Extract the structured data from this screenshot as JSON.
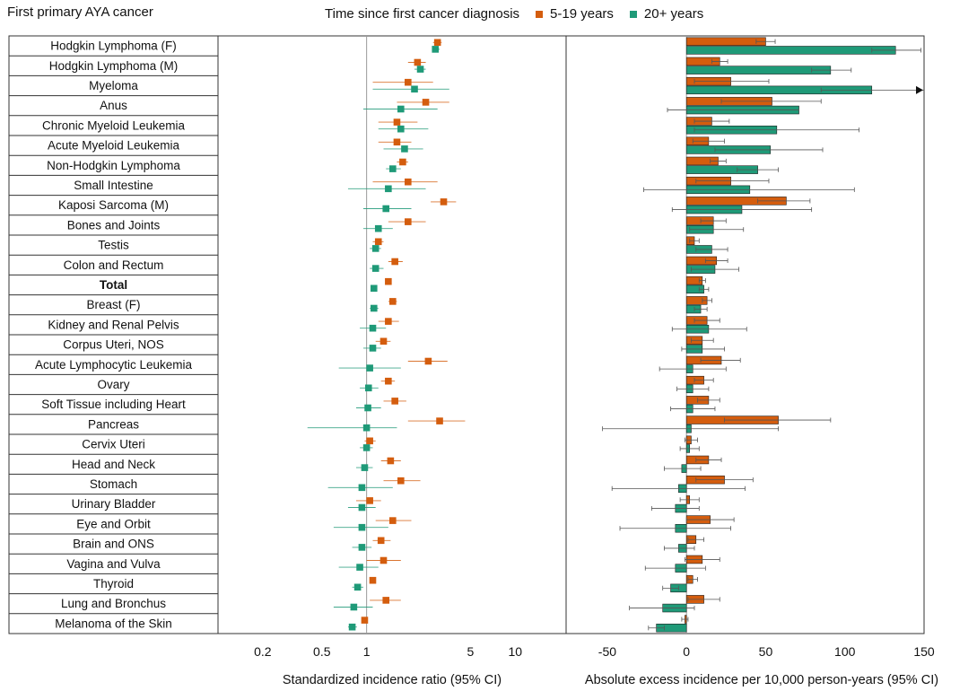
{
  "header": {
    "title": "First primary AYA cancer"
  },
  "legend": {
    "title": "Time since first cancer diagnosis"
  },
  "colors": {
    "early": "#d45d0e",
    "late": "#1f9a78",
    "grid": "#9a9a9a",
    "ci": "#555555"
  },
  "chart_data": [
    {
      "type": "scatter",
      "title": "",
      "xlabel": "Standardized incidence ratio (95% CI)",
      "xscale": "log",
      "xlim": [
        0.1,
        22
      ],
      "ticks": [
        0.2,
        0.5,
        1,
        5,
        10
      ],
      "tick_labels": [
        "0.2",
        "0.5",
        "1",
        "5",
        "10"
      ],
      "reference_line": 1,
      "series": [
        {
          "name": "5-19 years",
          "color": "#d45d0e"
        },
        {
          "name": "20+ years",
          "color": "#1f9a78"
        }
      ],
      "rows": [
        {
          "label": "Hodgkin Lymphoma (F)",
          "early": [
            3.0,
            2.8,
            3.2
          ],
          "late": [
            2.9,
            2.8,
            3.1
          ]
        },
        {
          "label": "Hodgkin Lymphoma (M)",
          "early": [
            2.2,
            1.9,
            2.5
          ],
          "late": [
            2.3,
            2.1,
            2.5
          ]
        },
        {
          "label": "Myeloma",
          "early": [
            1.9,
            1.1,
            2.8
          ],
          "late": [
            2.1,
            1.1,
            3.6
          ]
        },
        {
          "label": "Anus",
          "early": [
            2.5,
            1.6,
            3.6
          ],
          "late": [
            1.7,
            0.95,
            3.0
          ]
        },
        {
          "label": "Chronic Myeloid Leukemia",
          "early": [
            1.6,
            1.2,
            2.2
          ],
          "late": [
            1.7,
            1.2,
            2.6
          ]
        },
        {
          "label": "Acute Myeloid Leukemia",
          "early": [
            1.6,
            1.2,
            2.0
          ],
          "late": [
            1.8,
            1.3,
            2.4
          ]
        },
        {
          "label": "Non-Hodgkin Lymphoma",
          "early": [
            1.75,
            1.6,
            1.9
          ],
          "late": [
            1.5,
            1.35,
            1.7
          ]
        },
        {
          "label": "Small Intestine",
          "early": [
            1.9,
            1.1,
            3.0
          ],
          "late": [
            1.4,
            0.75,
            2.5
          ]
        },
        {
          "label": "Kaposi Sarcoma (M)",
          "early": [
            3.3,
            2.7,
            4.0
          ],
          "late": [
            1.35,
            0.95,
            2.0
          ]
        },
        {
          "label": "Bones and Joints",
          "early": [
            1.9,
            1.4,
            2.5
          ],
          "late": [
            1.2,
            0.95,
            1.5
          ]
        },
        {
          "label": "Testis",
          "early": [
            1.2,
            1.1,
            1.3
          ],
          "late": [
            1.15,
            1.05,
            1.25
          ]
        },
        {
          "label": "Colon and Rectum",
          "early": [
            1.55,
            1.4,
            1.75
          ],
          "late": [
            1.15,
            1.05,
            1.3
          ]
        },
        {
          "label": "Total",
          "bold": true,
          "early": [
            1.4,
            1.35,
            1.45
          ],
          "late": [
            1.12,
            1.08,
            1.16
          ]
        },
        {
          "label": "Breast (F)",
          "early": [
            1.5,
            1.4,
            1.6
          ],
          "late": [
            1.12,
            1.05,
            1.2
          ]
        },
        {
          "label": "Kidney and Renal Pelvis",
          "early": [
            1.4,
            1.2,
            1.65
          ],
          "late": [
            1.1,
            0.9,
            1.35
          ]
        },
        {
          "label": "Corpus Uteri, NOS",
          "early": [
            1.3,
            1.15,
            1.45
          ],
          "late": [
            1.1,
            0.95,
            1.25
          ]
        },
        {
          "label": "Acute Lymphocytic Leukemia",
          "early": [
            2.6,
            1.9,
            3.5
          ],
          "late": [
            1.05,
            0.65,
            1.7
          ]
        },
        {
          "label": "Ovary",
          "early": [
            1.4,
            1.25,
            1.55
          ],
          "late": [
            1.03,
            0.9,
            1.2
          ]
        },
        {
          "label": "Soft Tissue including Heart",
          "early": [
            1.55,
            1.3,
            1.85
          ],
          "late": [
            1.02,
            0.85,
            1.25
          ]
        },
        {
          "label": "Pancreas",
          "early": [
            3.1,
            1.9,
            4.6
          ],
          "late": [
            1.0,
            0.4,
            1.6
          ]
        },
        {
          "label": "Cervix Uteri",
          "early": [
            1.05,
            0.97,
            1.15
          ],
          "late": [
            1.0,
            0.9,
            1.1
          ]
        },
        {
          "label": "Head and Neck",
          "early": [
            1.45,
            1.25,
            1.7
          ],
          "late": [
            0.97,
            0.85,
            1.1
          ]
        },
        {
          "label": "Stomach",
          "early": [
            1.7,
            1.3,
            2.3
          ],
          "late": [
            0.93,
            0.55,
            1.5
          ]
        },
        {
          "label": "Urinary Bladder",
          "early": [
            1.05,
            0.85,
            1.25
          ],
          "late": [
            0.93,
            0.75,
            1.15
          ]
        },
        {
          "label": "Eye and Orbit",
          "early": [
            1.5,
            1.15,
            2.0
          ],
          "late": [
            0.93,
            0.6,
            1.4
          ]
        },
        {
          "label": "Brain and ONS",
          "early": [
            1.25,
            1.1,
            1.45
          ],
          "late": [
            0.93,
            0.8,
            1.08
          ]
        },
        {
          "label": "Vagina and Vulva",
          "early": [
            1.3,
            1.0,
            1.7
          ],
          "late": [
            0.9,
            0.65,
            1.2
          ]
        },
        {
          "label": "Thyroid",
          "early": [
            1.1,
            1.05,
            1.15
          ],
          "late": [
            0.87,
            0.8,
            0.95
          ]
        },
        {
          "label": "Lung and Bronchus",
          "early": [
            1.35,
            1.05,
            1.7
          ],
          "late": [
            0.82,
            0.6,
            1.1
          ]
        },
        {
          "label": "Melanoma of the Skin",
          "early": [
            0.97,
            0.93,
            1.01
          ],
          "late": [
            0.8,
            0.75,
            0.86
          ]
        }
      ]
    },
    {
      "type": "bar",
      "title": "",
      "xlabel": "Absolute excess incidence per 10,000 person-years (95% CI)",
      "xlim": [
        -76,
        150
      ],
      "ticks": [
        -50,
        0,
        50,
        100,
        150
      ],
      "tick_labels": [
        "-50",
        "0",
        "50",
        "100",
        "150"
      ],
      "series": [
        {
          "name": "5-19 years",
          "color": "#d45d0e"
        },
        {
          "name": "20+ years",
          "color": "#1f9a78"
        }
      ],
      "rows": [
        {
          "label": "Hodgkin Lymphoma (F)",
          "early": [
            50,
            44,
            56
          ],
          "late": [
            132,
            117,
            148
          ]
        },
        {
          "label": "Hodgkin Lymphoma (M)",
          "early": [
            21,
            16,
            26
          ],
          "late": [
            91,
            79,
            104
          ]
        },
        {
          "label": "Myeloma",
          "early": [
            28,
            5,
            52
          ],
          "late": [
            117,
            85,
            150
          ],
          "late_arrow": true
        },
        {
          "label": "Anus",
          "early": [
            54,
            22,
            85
          ],
          "late": [
            71,
            0,
            0
          ],
          "late_ci_lo_only": -12
        },
        {
          "label": "Chronic Myeloid Leukemia",
          "early": [
            16,
            5,
            27
          ],
          "late": [
            57,
            5,
            109
          ]
        },
        {
          "label": "Acute Myeloid Leukemia",
          "early": [
            14,
            4,
            24
          ],
          "late": [
            53,
            18,
            86
          ]
        },
        {
          "label": "Non-Hodgkin Lymphoma",
          "early": [
            20,
            15,
            25
          ],
          "late": [
            45,
            32,
            58
          ]
        },
        {
          "label": "Small Intestine",
          "early": [
            28,
            6,
            52
          ],
          "late": [
            40,
            -27,
            106
          ]
        },
        {
          "label": "Kaposi Sarcoma (M)",
          "early": [
            63,
            45,
            78
          ],
          "late": [
            35,
            -9,
            79
          ]
        },
        {
          "label": "Bones and Joints",
          "early": [
            17,
            9,
            25
          ],
          "late": [
            17,
            2,
            36
          ]
        },
        {
          "label": "Testis",
          "early": [
            5,
            2,
            8
          ],
          "late": [
            16,
            6,
            26
          ]
        },
        {
          "label": "Colon and Rectum",
          "early": [
            19,
            12,
            26
          ],
          "late": [
            18,
            3,
            33
          ]
        },
        {
          "label": "Total",
          "early": [
            10,
            8,
            12
          ],
          "late": [
            11,
            8,
            14
          ]
        },
        {
          "label": "Breast (F)",
          "early": [
            13,
            10,
            16
          ],
          "late": [
            9,
            5,
            13
          ]
        },
        {
          "label": "Kidney and Renal Pelvis",
          "early": [
            13,
            5,
            21
          ],
          "late": [
            14,
            -9,
            38
          ]
        },
        {
          "label": "Corpus Uteri, NOS",
          "early": [
            10,
            3,
            17
          ],
          "late": [
            10,
            -3,
            24
          ]
        },
        {
          "label": "Acute Lymphocytic Leukemia",
          "early": [
            22,
            9,
            34
          ],
          "late": [
            4,
            -17,
            25
          ]
        },
        {
          "label": "Ovary",
          "early": [
            11,
            5,
            17
          ],
          "late": [
            4,
            -6,
            14
          ]
        },
        {
          "label": "Soft Tissue including Heart",
          "early": [
            14,
            7,
            21
          ],
          "late": [
            4,
            -10,
            18
          ]
        },
        {
          "label": "Pancreas",
          "early": [
            58,
            24,
            91
          ],
          "late": [
            3,
            -53,
            58
          ]
        },
        {
          "label": "Cervix Uteri",
          "early": [
            3,
            -1,
            7
          ],
          "late": [
            2,
            -4,
            8
          ]
        },
        {
          "label": "Head and Neck",
          "early": [
            14,
            6,
            22
          ],
          "late": [
            -3,
            -14,
            9
          ]
        },
        {
          "label": "Stomach",
          "early": [
            24,
            6,
            42
          ],
          "late": [
            -5,
            -47,
            37
          ]
        },
        {
          "label": "Urinary Bladder",
          "early": [
            2,
            -4,
            8
          ],
          "late": [
            -7,
            -22,
            8
          ]
        },
        {
          "label": "Eye and Orbit",
          "early": [
            15,
            0,
            30
          ],
          "late": [
            -7,
            -42,
            28
          ]
        },
        {
          "label": "Brain and ONS",
          "early": [
            6,
            1,
            11
          ],
          "late": [
            -5,
            -14,
            5
          ]
        },
        {
          "label": "Vagina and Vulva",
          "early": [
            10,
            -1,
            21
          ],
          "late": [
            -7,
            -26,
            12
          ]
        },
        {
          "label": "Thyroid",
          "early": [
            4,
            1,
            7
          ],
          "late": [
            -10,
            -15,
            -5
          ]
        },
        {
          "label": "Lung and Bronchus",
          "early": [
            11,
            1,
            21
          ],
          "late": [
            -15,
            -36,
            5
          ]
        },
        {
          "label": "Melanoma of the Skin",
          "early": [
            -1,
            -3,
            1
          ],
          "late": [
            -19,
            -24,
            -14
          ]
        }
      ]
    }
  ]
}
